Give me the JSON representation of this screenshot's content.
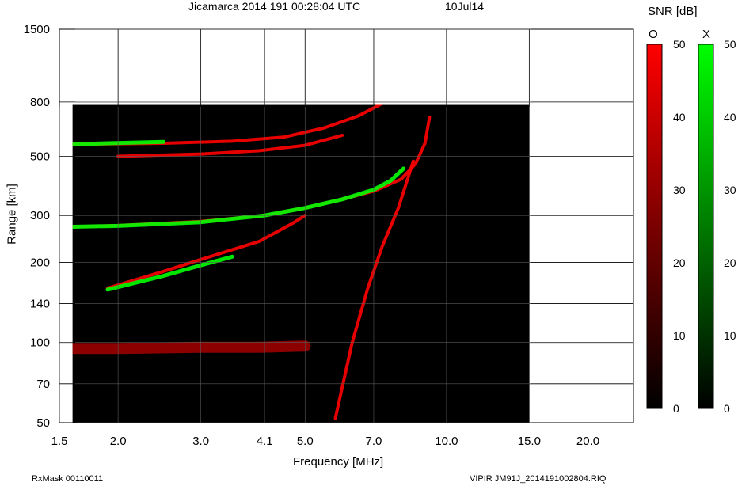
{
  "header": {
    "title": "Jicamarca 2014 191 00:28:04 UTC",
    "date": "10Jul14"
  },
  "footer": {
    "left": "RxMask 00110011",
    "right": "VIPIR  JM91J_2014191002804.RIQ"
  },
  "colorbar": {
    "title": "SNR [dB]",
    "o_label": "O",
    "x_label": "X",
    "o_color": "#ff0000",
    "x_color": "#00ff00",
    "ticks": [
      "0",
      "10",
      "20",
      "30",
      "40",
      "50"
    ],
    "range": [
      0,
      50
    ]
  },
  "chart_data": {
    "type": "heatmap",
    "title": "Jicamarca 2014 191 00:28:04 UTC",
    "xlabel": "Frequency [MHz]",
    "ylabel": "Range [km]",
    "x_ticks": [
      "1.5",
      "2.0",
      "3.0",
      "4.1",
      "5.0",
      "7.0",
      "10.0",
      "15.0",
      "20.0"
    ],
    "y_ticks": [
      "50",
      "70",
      "100",
      "140",
      "200",
      "300",
      "500",
      "800",
      "1500"
    ],
    "xlim": [
      1.5,
      25
    ],
    "ylim": [
      50,
      1500
    ],
    "x_scale": "log",
    "y_scale": "log",
    "grid": true,
    "data_extent": {
      "freq": [
        1.6,
        15.0
      ],
      "range": [
        50,
        780
      ]
    },
    "background_color": "#000000",
    "traces": [
      {
        "name": "F-layer O trace",
        "color": "#ff0000",
        "points": [
          [
            1.6,
            272
          ],
          [
            2.0,
            275
          ],
          [
            3.0,
            285
          ],
          [
            4.1,
            300
          ],
          [
            5.0,
            320
          ],
          [
            6.0,
            345
          ],
          [
            7.0,
            370
          ],
          [
            8.0,
            410
          ],
          [
            8.6,
            470
          ],
          [
            9.0,
            560
          ],
          [
            9.2,
            700
          ]
        ]
      },
      {
        "name": "F-layer X trace",
        "color": "#00ff00",
        "points": [
          [
            1.6,
            272
          ],
          [
            2.0,
            274
          ],
          [
            3.0,
            283
          ],
          [
            4.1,
            300
          ],
          [
            5.0,
            320
          ],
          [
            6.0,
            345
          ],
          [
            7.0,
            375
          ],
          [
            7.6,
            405
          ],
          [
            8.1,
            450
          ]
        ]
      },
      {
        "name": "Lower trace",
        "color": "#ff0000",
        "points": [
          [
            1.9,
            160
          ],
          [
            2.5,
            185
          ],
          [
            3.0,
            205
          ],
          [
            4.0,
            240
          ],
          [
            4.7,
            280
          ],
          [
            5.0,
            300
          ]
        ]
      },
      {
        "name": "Lower X trace",
        "color": "#00ff00",
        "points": [
          [
            1.9,
            158
          ],
          [
            2.5,
            178
          ],
          [
            3.0,
            195
          ],
          [
            3.5,
            210
          ]
        ]
      },
      {
        "name": "Multi-hop trace",
        "color": "#ff0000",
        "points": [
          [
            1.6,
            555
          ],
          [
            2.5,
            560
          ],
          [
            3.5,
            570
          ],
          [
            4.5,
            590
          ],
          [
            5.5,
            640
          ],
          [
            6.5,
            710
          ],
          [
            7.3,
            790
          ]
        ]
      },
      {
        "name": "Multi-hop X trace",
        "color": "#00ff00",
        "points": [
          [
            1.6,
            555
          ],
          [
            1.9,
            560
          ],
          [
            2.5,
            567
          ]
        ]
      },
      {
        "name": "Second multi-hop trace",
        "color": "#ff0000",
        "points": [
          [
            2.0,
            500
          ],
          [
            3.0,
            510
          ],
          [
            4.0,
            525
          ],
          [
            5.0,
            550
          ],
          [
            6.0,
            600
          ]
        ]
      },
      {
        "name": "E-region echoes",
        "color": "#ff0000",
        "points": [
          [
            1.6,
            95
          ],
          [
            2.0,
            95
          ],
          [
            3.0,
            96
          ],
          [
            4.0,
            96
          ],
          [
            5.0,
            97
          ]
        ]
      },
      {
        "name": "Steep rising trace",
        "color": "#ff0000",
        "points": [
          [
            5.8,
            52
          ],
          [
            6.3,
            100
          ],
          [
            6.8,
            160
          ],
          [
            7.3,
            230
          ],
          [
            7.9,
            320
          ],
          [
            8.5,
            480
          ]
        ]
      }
    ]
  }
}
